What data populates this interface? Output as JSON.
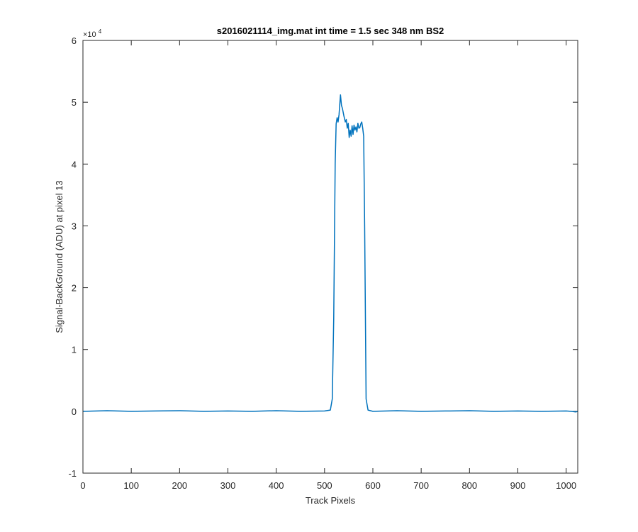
{
  "chart_data": {
    "type": "line",
    "title": "s2016021114_img.mat int time = 1.5 sec  348 nm BS2",
    "xlabel": "Track Pixels",
    "ylabel": "Signal-BackGround (ADU) at pixel 13",
    "y_exponent_base": "×10",
    "y_exponent_power": "4",
    "xlim": [
      0,
      1024
    ],
    "ylim": [
      -10000,
      60000
    ],
    "x_ticks": [
      0,
      100,
      200,
      300,
      400,
      500,
      600,
      700,
      800,
      900,
      1000
    ],
    "x_tick_labels": [
      "0",
      "100",
      "200",
      "300",
      "400",
      "500",
      "600",
      "700",
      "800",
      "900",
      "1000"
    ],
    "y_ticks": [
      -10000,
      0,
      10000,
      20000,
      30000,
      40000,
      50000,
      60000
    ],
    "y_tick_labels": [
      "-1",
      "0",
      "1",
      "2",
      "3",
      "4",
      "5",
      "6"
    ],
    "grid": false,
    "line_color": "#0072BD",
    "series": [
      {
        "x": [
          0,
          50,
          100,
          150,
          200,
          250,
          300,
          350,
          400,
          450,
          500,
          512,
          516,
          519,
          522,
          524,
          526,
          528,
          530,
          532,
          533,
          535,
          537,
          540,
          543,
          545,
          547,
          549,
          551,
          553,
          555,
          557,
          559,
          561,
          563,
          565,
          567,
          569,
          571,
          573,
          575,
          577,
          579,
          581,
          583,
          586,
          590,
          600,
          650,
          700,
          750,
          800,
          850,
          900,
          950,
          1000,
          1010,
          1020,
          1024
        ],
        "y": [
          0,
          100,
          0,
          50,
          100,
          0,
          50,
          0,
          100,
          0,
          50,
          200,
          2000,
          15000,
          40000,
          46500,
          47500,
          46800,
          48000,
          50200,
          51200,
          49500,
          49000,
          47800,
          46800,
          47200,
          45800,
          46600,
          44300,
          45500,
          44500,
          46200,
          44800,
          46300,
          45500,
          46000,
          45200,
          46600,
          45800,
          45900,
          46500,
          46800,
          45800,
          44500,
          30000,
          2000,
          200,
          0,
          100,
          0,
          50,
          100,
          0,
          50,
          0,
          50,
          0,
          -100,
          0
        ]
      }
    ]
  }
}
